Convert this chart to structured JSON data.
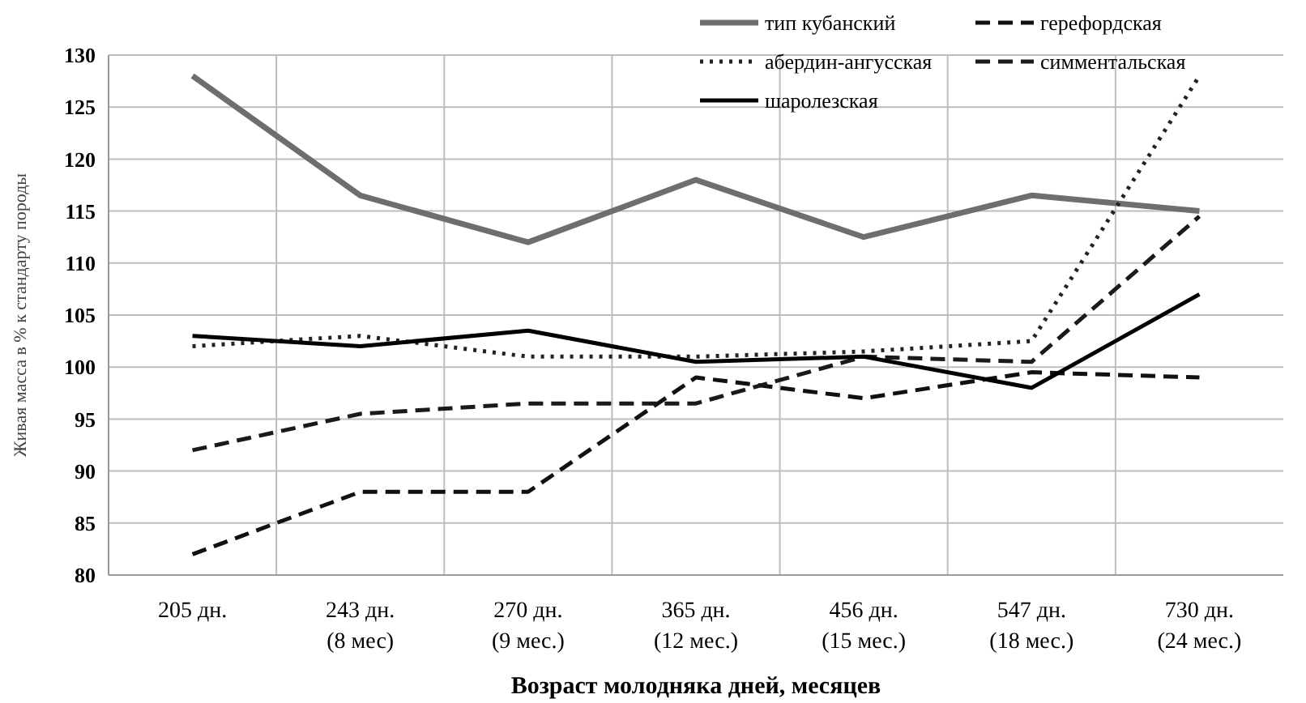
{
  "chart_data": {
    "type": "line",
    "xlabel": "Возраст молодняка дней, месяцев",
    "ylabel": "Живая масса в % к стандарту породы",
    "categories": [
      "205 дн.",
      "243 дн.\n(8 мес)",
      "270 дн.\n(9 мес.)",
      "365 дн.\n(12 мес.)",
      "456 дн.\n(15 мес.)",
      "547 дн.\n(18 мес.)",
      "730 дн.\n(24 мес.)"
    ],
    "ylim": [
      80,
      130
    ],
    "yticks": [
      80,
      85,
      90,
      95,
      100,
      105,
      110,
      115,
      120,
      125,
      130
    ],
    "grid": true,
    "legend": "top right",
    "series": [
      {
        "name": "тип кубанский",
        "color": "#6e6e6e",
        "line_style": "solid",
        "values": [
          128,
          116.5,
          112,
          118,
          112.5,
          116.5,
          115
        ]
      },
      {
        "name": "герефордская",
        "color": "#111111",
        "line_style": "dashed",
        "values": [
          82,
          88,
          88,
          99,
          97,
          99.5,
          99
        ]
      },
      {
        "name": "абердин-ангусская",
        "color": "#222222",
        "line_style": "dotted",
        "values": [
          102,
          103,
          101,
          101,
          101.5,
          102.5,
          128
        ]
      },
      {
        "name": "симментальская",
        "color": "#1a1a1a",
        "line_style": "dashed",
        "values": [
          92,
          95.5,
          96.5,
          96.5,
          101,
          100.5,
          114.5
        ]
      },
      {
        "name": "шаролезская",
        "color": "#000000",
        "line_style": "solid",
        "values": [
          103,
          102,
          103.5,
          100.5,
          101,
          98,
          107
        ]
      }
    ]
  }
}
